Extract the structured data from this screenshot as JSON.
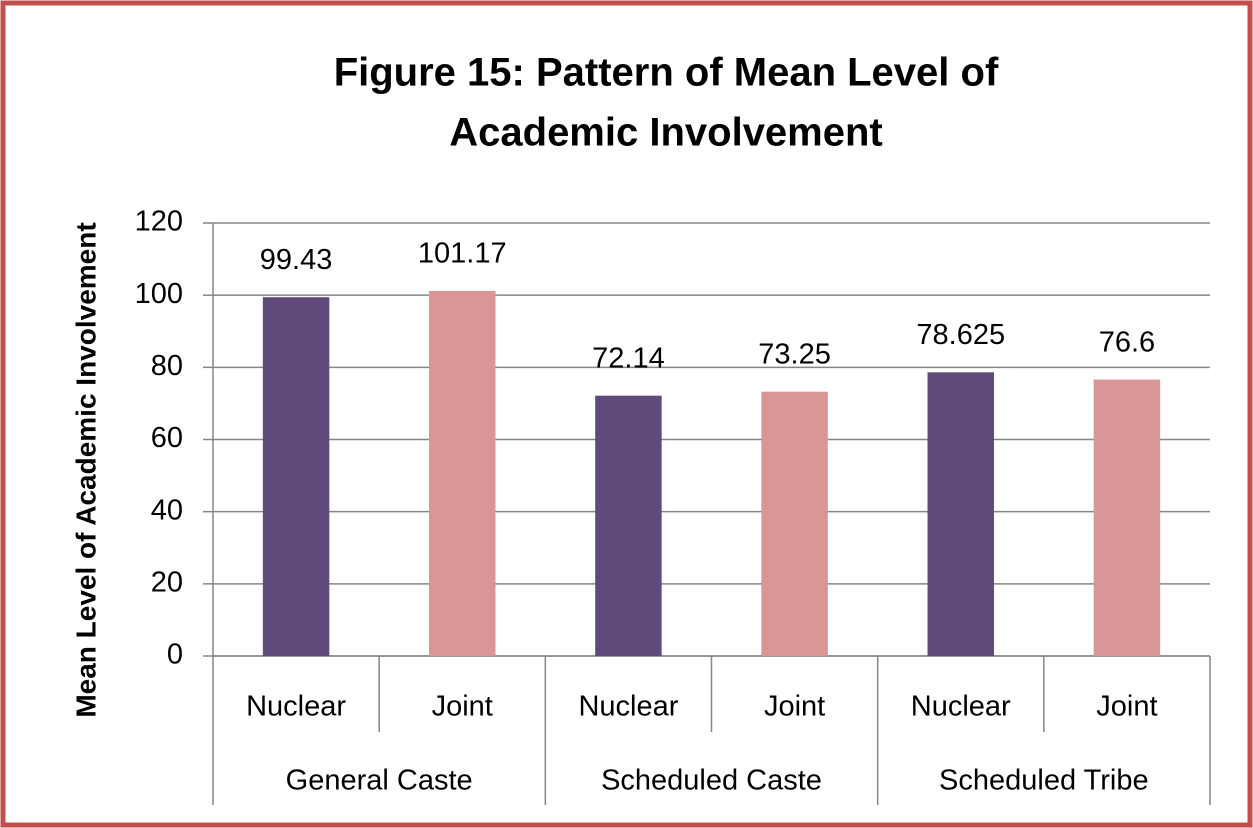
{
  "chart_data": {
    "type": "bar",
    "title": [
      "Figure 15: Pattern of Mean Level of",
      "Academic Involvement"
    ],
    "y_label": "Mean Level of Academic Involvement",
    "categories": [
      "Nuclear",
      "Joint",
      "Nuclear",
      "Joint",
      "Nuclear",
      "Joint"
    ],
    "groups": [
      "General Caste",
      "Scheduled Caste",
      "Scheduled Tribe"
    ],
    "values": [
      99.43,
      101.17,
      72.14,
      73.25,
      78.625,
      76.6
    ],
    "colors": [
      "#604a7b",
      "#d99694",
      "#604a7b",
      "#d99694",
      "#604a7b",
      "#d99694"
    ],
    "ylim": [
      0,
      120
    ],
    "yticks": [
      0,
      20,
      40,
      60,
      80,
      100,
      120
    ],
    "grid": true
  }
}
